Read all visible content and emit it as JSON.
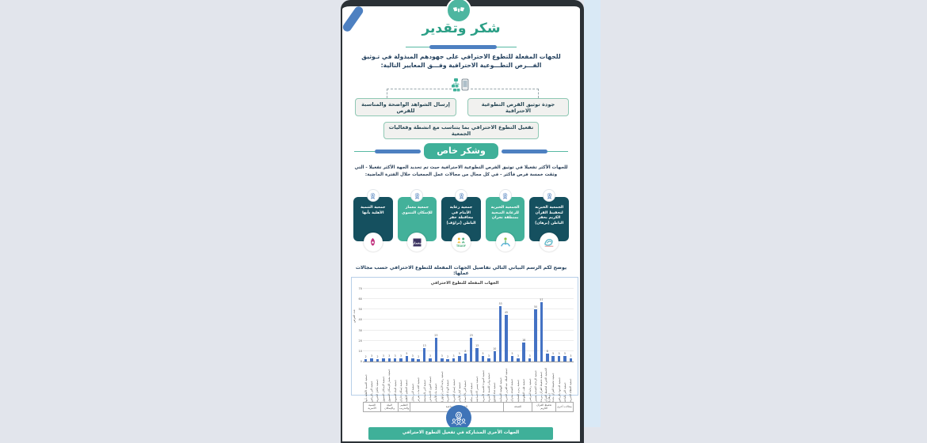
{
  "page": {
    "title": "شكر وتقدير",
    "intro": "للجهات المفعلة للتطوع الاحترافي على جهودهم المبذولة في تـوثيق الفـــرص التطـــوعية الاحترافية وفـــق المعايير التالية:",
    "criteria": [
      "جودة توثيق الفرص التطوعية الاحترافية",
      "إرسال الشواهد الواضحة والمناسبة للفرص",
      "تفعيل التطوع الاحترافي بما يتناسب مع انشطة وفعاليات الجمعية"
    ],
    "special_thanks_title": "وشكر خاص",
    "special_thanks_text": "للجهات الأكثر تفعيلا في توثيق الفرص التطوعية الاحترافية حيث تم تحديد الجهة الأكثر تفعيلا - التي وثقت خمسة فرص فأكثر - في كل مجال من مجالات عمل الجمعيات خلال الفترة الماضية:",
    "cards": [
      {
        "name": "الجمعية الخيرية لتحفيظ القرآن الكريم بحفر الباطن (برهان)",
        "theme": "dark",
        "logo": "burhan-logo"
      },
      {
        "name": "الجمعية الخيرية للرعاية الصحية بمنطقة نجران",
        "theme": "green",
        "logo": "health-logo"
      },
      {
        "name": "جمعية رعاية الأيتام في محافظة حفر الباطن (تراؤف)",
        "theme": "dark",
        "logo": "traof-logo"
      },
      {
        "name": "جمعية معمار للإسكان التنموي",
        "theme": "green",
        "logo": "memar-logo"
      },
      {
        "name": "جمعية التنمية الأهلية بأبها",
        "theme": "dark",
        "logo": "abha-logo"
      }
    ],
    "chart_intro": "يوضح لكم الرسم البياني التالي تفاصيل الجهات المفعلة للتطوع الاحترافي حسب مجالات عملها:",
    "footer_banner": "الجهات الأخرى المشاركة في تفعيل التطوع الاحترافي"
  },
  "colors": {
    "teal": "#3fb099",
    "dark_card": "#15505f",
    "green_card": "#43b19a",
    "blue_accent": "#4d80c1",
    "bar_blue": "#4472c4",
    "navy_text": "#24415e"
  },
  "chart_data": {
    "type": "bar",
    "title": "الجهات المفعلة للتطوع الاحترافي",
    "ylabel": "عدد الفرص",
    "ylim": [
      0,
      70
    ],
    "yticks": [
      0,
      10,
      20,
      30,
      40,
      50,
      60,
      70
    ],
    "grid": true,
    "legend": false,
    "categories": [
      "جمعية التنمية الأهلية بأبها",
      "جمعية البر بالرياض",
      "جمعية تكافل الخيرية",
      "جمعية الإسكان التنموي",
      "جمعية معمار للإسكان التنموي",
      "جمعية البناء التنموية",
      "جمعية إسكان جازان",
      "جمعية التعليم الأهلية",
      "جمعية البر بحائل",
      "جمعية الخدمات بعرعر",
      "جمعية البر بالمجمعة",
      "جمعية العون الاجتماعي",
      "جمعية بناء للأيتام",
      "جمعية رعاية الأيتام (تراؤف)",
      "جمعية الوداد الخيرية",
      "جمعية إنسان الخيرية",
      "جمعية كيان للأيتام",
      "جمعية البر بالأحساء",
      "جمعية الخير بمكة",
      "جمعية تيسير الاجتماعية",
      "جمعية المودة للتنمية الأسرية",
      "جمعية وئام للتنمية الأسرية",
      "جمعية فتاة الخليج",
      "جمعية النهضة النسائية",
      "جمعية الملك عبدالعزيز الخيرية",
      "جمعية الصحة بنجران",
      "جمعية زمزم الصحية",
      "جمعية طب التطوعية",
      "جمعية رعاية المرضى",
      "جمعية الرعاية الصحية بعسير",
      "جمعية تحفيظ القرآن ببريدة",
      "الجمعية الخيرية لتحفيظ القرآن (برهان)",
      "جمعية تحفيظ القرآن بجدة",
      "جمعية الدعوة بالرياض",
      "جمعية البر بالباحة",
      "جمعية العطاء الخيرية"
    ],
    "values": [
      2,
      3,
      2,
      3,
      3,
      3,
      3,
      5,
      3,
      2,
      13,
      3,
      23,
      3,
      2,
      3,
      5,
      8,
      23,
      13,
      5,
      3,
      10,
      53,
      45,
      5,
      3,
      18,
      3,
      50,
      57,
      8,
      5,
      5,
      5,
      3
    ],
    "groups": [
      {
        "label": "التنمية الأسرية",
        "span": 3
      },
      {
        "label": "البيئة والإسكان",
        "span": 3
      },
      {
        "label": "التعليم والتدريب",
        "span": 2
      },
      {
        "label": "الخدمات الاجتماعية",
        "span": 16
      },
      {
        "label": "الصحة",
        "span": 5
      },
      {
        "label": "تحفيظ القرآن الكريم",
        "span": 4
      },
      {
        "label": "مجالات أخرى",
        "span": 3
      }
    ]
  }
}
